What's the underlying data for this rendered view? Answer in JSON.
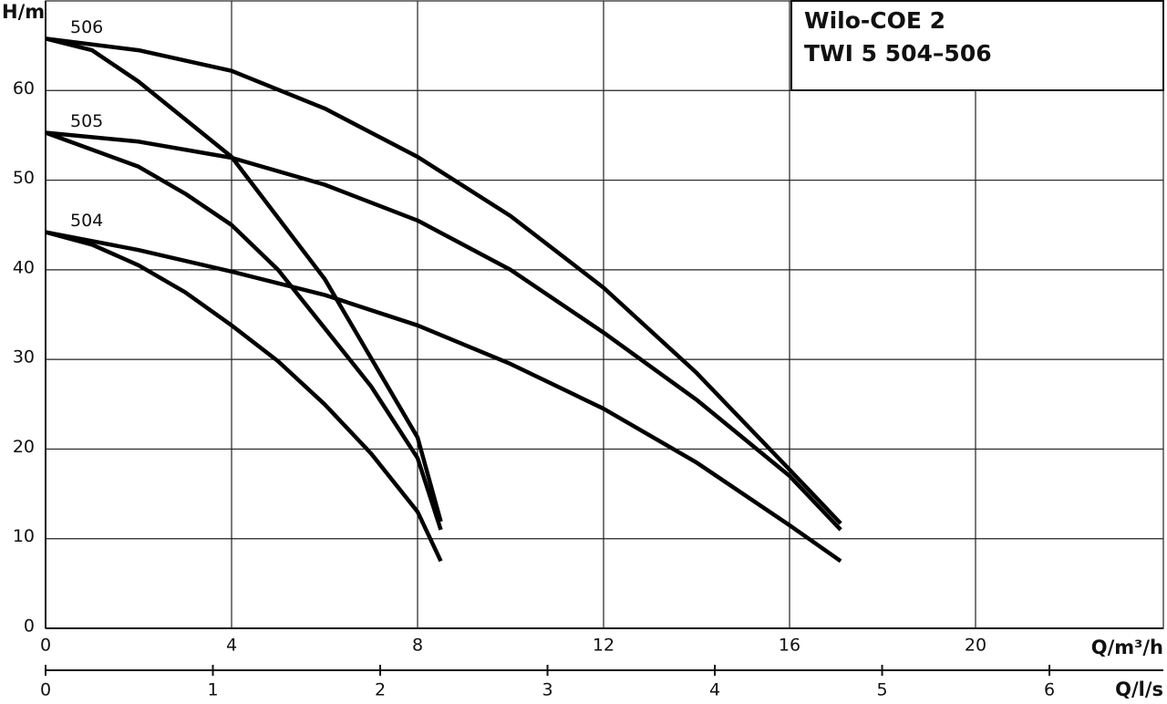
{
  "chart_data": {
    "type": "line",
    "title": [
      "Wilo-COE 2",
      "TWI 5 504–506"
    ],
    "y_label": "H/m",
    "x_label": "Q/m³/h",
    "x2_label": "Q/l/s",
    "xlim": [
      0,
      24
    ],
    "xticks": [
      0,
      4,
      8,
      12,
      16,
      20
    ],
    "ylim": [
      0,
      70
    ],
    "yticks": [
      0,
      10,
      20,
      30,
      40,
      50,
      60
    ],
    "x2lim": [
      0,
      6.67
    ],
    "x2ticks": [
      0,
      1,
      2,
      3,
      4,
      5,
      6
    ],
    "grid": true,
    "color": "#000000",
    "series": [
      {
        "name": "506",
        "lines": [
          {
            "x": [
              0,
              1,
              2,
              4,
              6,
              8,
              8.5
            ],
            "values": [
              65.8,
              64.5,
              61,
              52.6,
              39,
              21.3,
              11.9
            ]
          },
          {
            "x": [
              0,
              2,
              4,
              6,
              8,
              10,
              12,
              14,
              16,
              17.1
            ],
            "values": [
              65.8,
              64.5,
              62.2,
              58,
              52.6,
              46,
              38,
              28.5,
              17.7,
              11.7
            ]
          }
        ]
      },
      {
        "name": "505",
        "lines": [
          {
            "x": [
              0,
              2,
              3,
              4,
              5,
              6,
              7,
              8,
              8.5
            ],
            "values": [
              55.3,
              51.5,
              48.5,
              45,
              40,
              33.5,
              27,
              19,
              11
            ]
          },
          {
            "x": [
              0,
              2,
              4,
              6,
              8,
              10,
              12,
              14,
              16,
              17.1
            ],
            "values": [
              55.3,
              54.3,
              52.5,
              49.5,
              45.5,
              40,
              33,
              25.5,
              17,
              11
            ]
          }
        ]
      },
      {
        "name": "504",
        "lines": [
          {
            "x": [
              0,
              1,
              2,
              3,
              4,
              5,
              6,
              7,
              8,
              8.5
            ],
            "values": [
              44.2,
              42.8,
              40.5,
              37.5,
              33.8,
              29.8,
              25,
              19.5,
              13,
              7.5
            ]
          },
          {
            "x": [
              0,
              2,
              4,
              6,
              8,
              10,
              12,
              14,
              16,
              17.1
            ],
            "values": [
              44.2,
              42.2,
              39.8,
              37.2,
              33.8,
              29.5,
              24.5,
              18.5,
              11.5,
              7.5
            ]
          }
        ]
      }
    ]
  }
}
